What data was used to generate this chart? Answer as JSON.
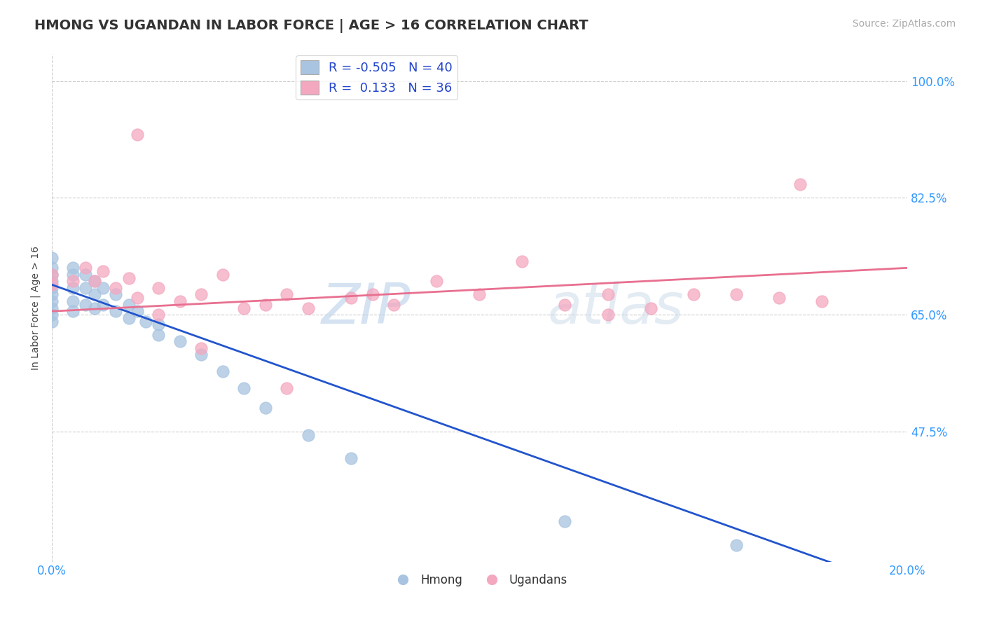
{
  "title": "HMONG VS UGANDAN IN LABOR FORCE | AGE > 16 CORRELATION CHART",
  "source_text": "Source: ZipAtlas.com",
  "ylabel": "In Labor Force | Age > 16",
  "R_hmong": -0.505,
  "N_hmong": 40,
  "R_ugandan": 0.133,
  "N_ugandan": 36,
  "hmong_color": "#a8c4e0",
  "ugandan_color": "#f4a8c0",
  "hmong_line_color": "#2255cc",
  "ugandan_line_color": "#e87090",
  "xmin": 0.0,
  "xmax": 0.2,
  "ymin": 0.28,
  "ymax": 1.04,
  "hmong_scatter_x": [
    0.0,
    0.0,
    0.0,
    0.0,
    0.0,
    0.0,
    0.0,
    0.0,
    0.0,
    0.0,
    0.005,
    0.005,
    0.005,
    0.005,
    0.005,
    0.008,
    0.008,
    0.008,
    0.01,
    0.01,
    0.01,
    0.012,
    0.012,
    0.015,
    0.015,
    0.018,
    0.018,
    0.02,
    0.022,
    0.025,
    0.025,
    0.03,
    0.035,
    0.04,
    0.045,
    0.05,
    0.06,
    0.07,
    0.12,
    0.16
  ],
  "hmong_scatter_y": [
    0.735,
    0.72,
    0.71,
    0.7,
    0.69,
    0.68,
    0.67,
    0.66,
    0.65,
    0.64,
    0.72,
    0.71,
    0.69,
    0.67,
    0.655,
    0.71,
    0.69,
    0.665,
    0.7,
    0.68,
    0.66,
    0.69,
    0.665,
    0.68,
    0.655,
    0.665,
    0.645,
    0.655,
    0.64,
    0.635,
    0.62,
    0.61,
    0.59,
    0.565,
    0.54,
    0.51,
    0.47,
    0.435,
    0.34,
    0.305
  ],
  "ugandan_scatter_x": [
    0.0,
    0.0,
    0.005,
    0.008,
    0.01,
    0.012,
    0.015,
    0.018,
    0.02,
    0.02,
    0.025,
    0.03,
    0.035,
    0.04,
    0.045,
    0.05,
    0.055,
    0.06,
    0.07,
    0.075,
    0.08,
    0.09,
    0.1,
    0.11,
    0.12,
    0.13,
    0.14,
    0.15,
    0.16,
    0.17,
    0.175,
    0.18,
    0.025,
    0.035,
    0.055,
    0.13
  ],
  "ugandan_scatter_y": [
    0.71,
    0.695,
    0.7,
    0.72,
    0.7,
    0.715,
    0.69,
    0.705,
    0.675,
    0.92,
    0.69,
    0.67,
    0.68,
    0.71,
    0.66,
    0.665,
    0.68,
    0.66,
    0.675,
    0.68,
    0.665,
    0.7,
    0.68,
    0.73,
    0.665,
    0.68,
    0.66,
    0.68,
    0.68,
    0.675,
    0.845,
    0.67,
    0.65,
    0.6,
    0.54,
    0.65
  ],
  "hmong_line_x0": 0.0,
  "hmong_line_y0": 0.695,
  "hmong_line_x1": 0.175,
  "hmong_line_y1": 0.295,
  "ugandan_line_x0": 0.0,
  "ugandan_line_y0": 0.655,
  "ugandan_line_x1": 0.2,
  "ugandan_line_y1": 0.72,
  "y_ticks": [
    1.0,
    0.825,
    0.65,
    0.475
  ],
  "y_labels": [
    "100.0%",
    "82.5%",
    "65.0%",
    "47.5%"
  ]
}
